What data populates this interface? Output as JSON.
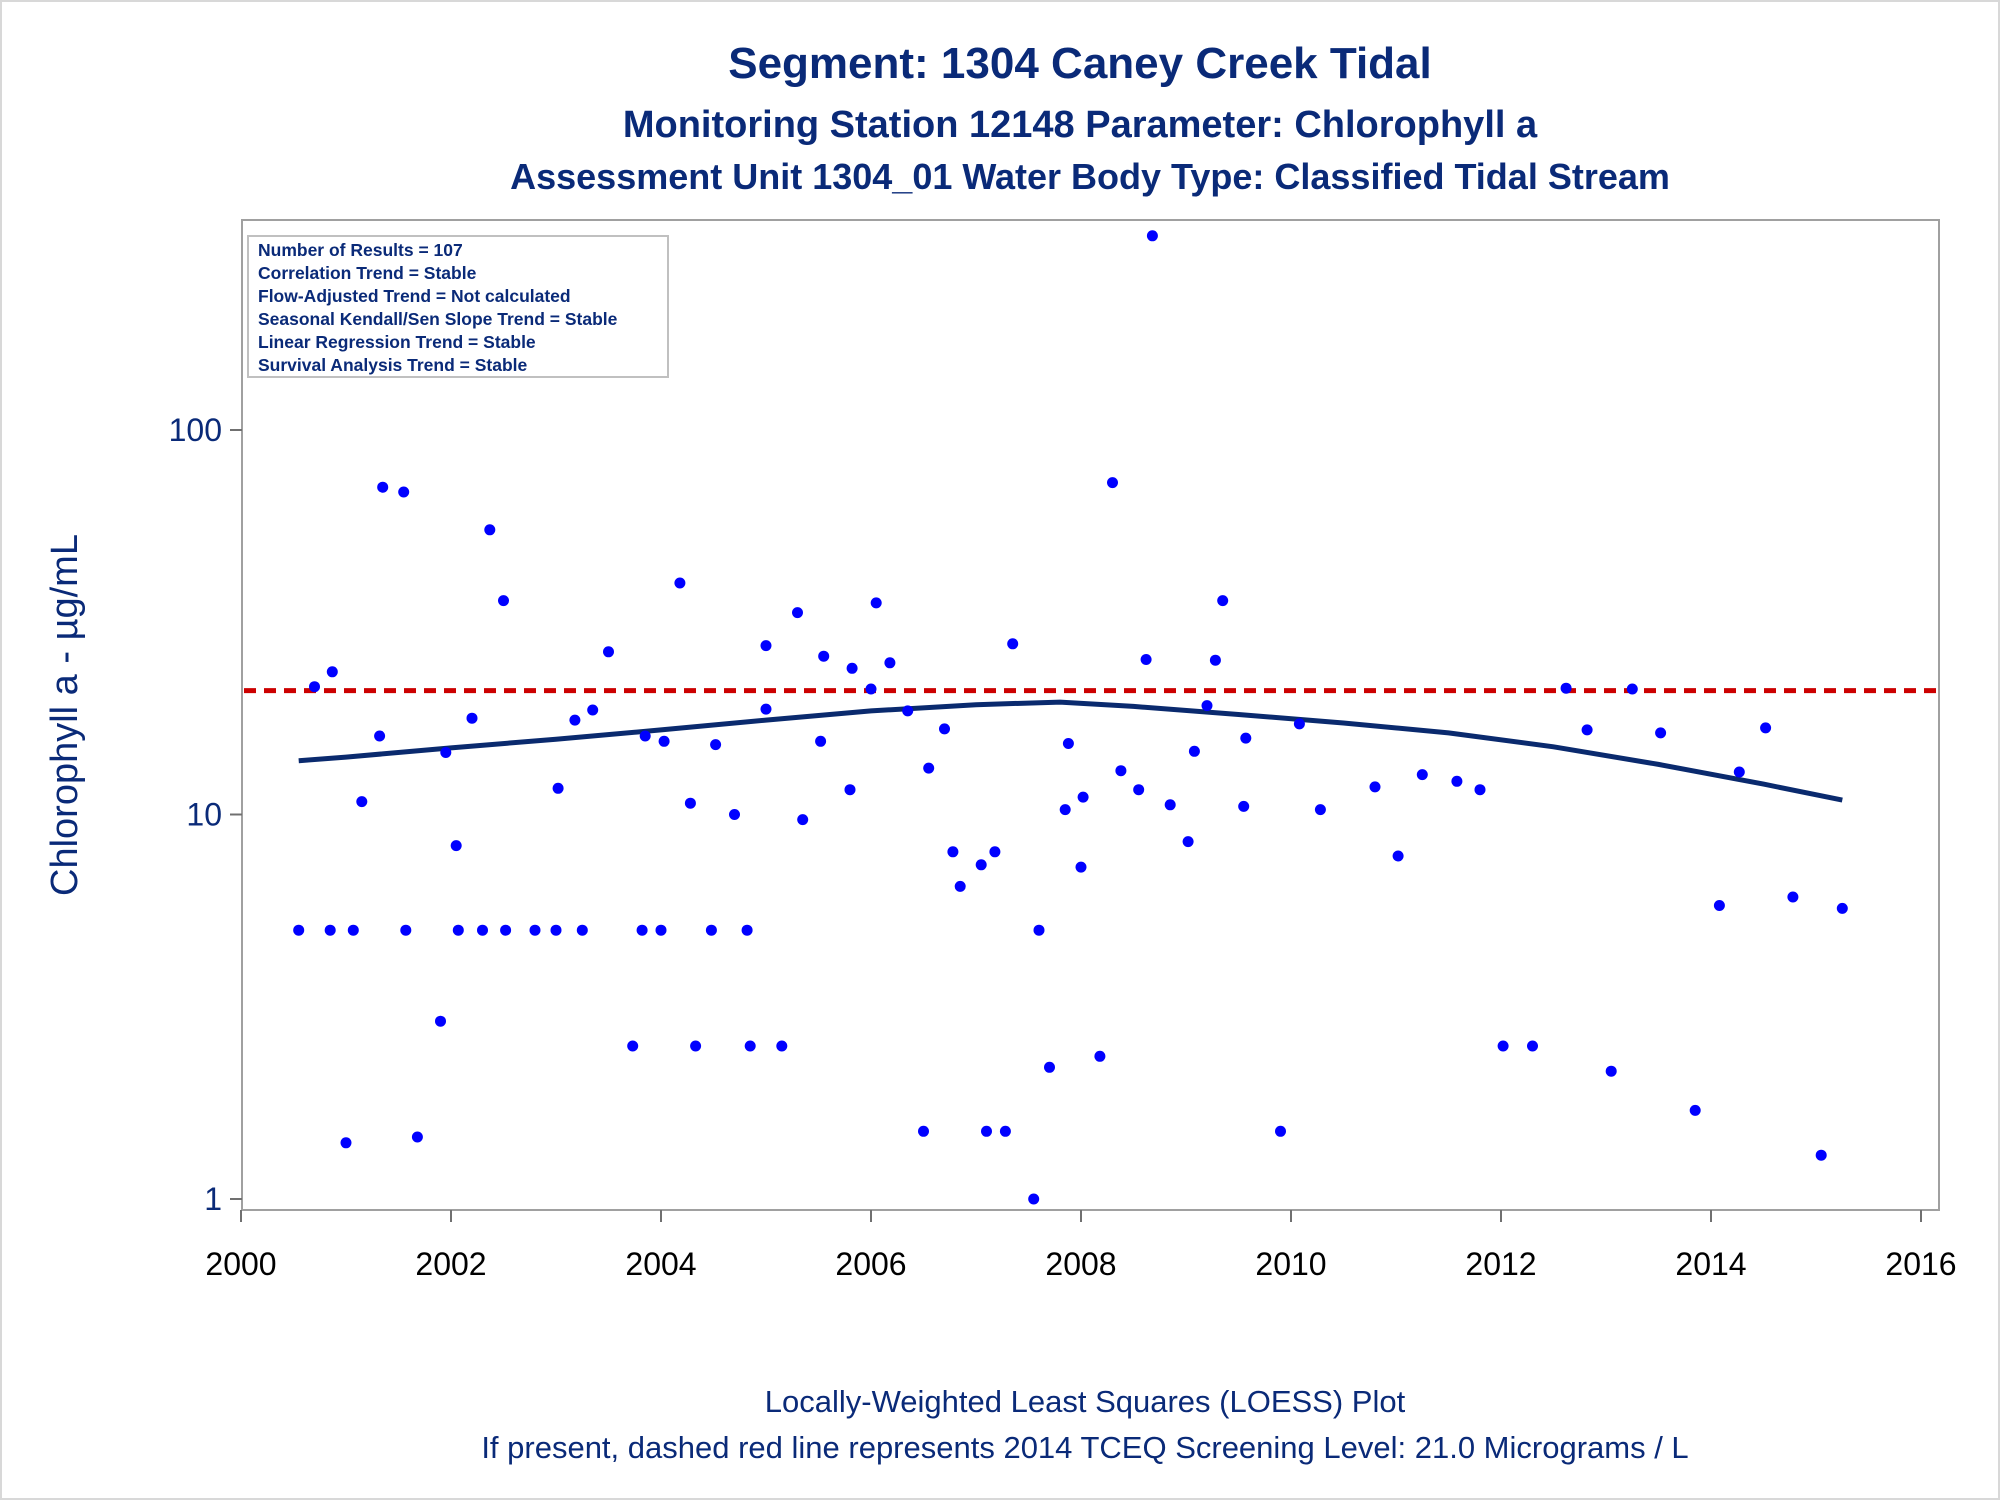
{
  "chart_data": {
    "type": "scatter",
    "title": "Segment: 1304  Caney Creek Tidal",
    "subtitle": "Monitoring Station 12148 Parameter: Chlorophyll a",
    "subtitle2": "Assessment Unit 1304_01   Water Body Type: Classified Tidal Stream",
    "ylabel": "Chlorophyll a -  µg/mL",
    "xlabel": "",
    "footnote1": "Locally-Weighted Least Squares (LOESS) Plot",
    "footnote2": "If present, dashed red line represents 2014 TCEQ Screening Level: 21.0 Micrograms / L",
    "y_scale": "log",
    "xlim": [
      2000,
      2016
    ],
    "x_ticks": [
      2000,
      2002,
      2004,
      2006,
      2008,
      2010,
      2012,
      2014,
      2016
    ],
    "y_ticks": [
      1,
      10,
      100
    ],
    "grid": false,
    "legend": "none",
    "stats": [
      "Number of Results = 107",
      "Correlation Trend = Stable",
      "Flow-Adjusted Trend = Not calculated",
      "Seasonal Kendall/Sen Slope Trend = Stable",
      "Linear Regression Trend = Stable",
      "Survival Analysis Trend = Stable"
    ],
    "screening_level": 21.0,
    "colors": {
      "points": "#0000ff",
      "loess": "#0a2a6e",
      "screening": "#cc0000",
      "text": "#0a2a78"
    },
    "points": [
      {
        "x": 2000.55,
        "y": 5.0
      },
      {
        "x": 2000.7,
        "y": 21.5
      },
      {
        "x": 2000.85,
        "y": 5.0
      },
      {
        "x": 2000.87,
        "y": 23.5
      },
      {
        "x": 2001.0,
        "y": 1.4
      },
      {
        "x": 2001.07,
        "y": 5.0
      },
      {
        "x": 2001.15,
        "y": 10.8
      },
      {
        "x": 2001.32,
        "y": 16.0
      },
      {
        "x": 2001.35,
        "y": 71.0
      },
      {
        "x": 2001.55,
        "y": 69.0
      },
      {
        "x": 2001.57,
        "y": 5.0
      },
      {
        "x": 2001.68,
        "y": 1.45
      },
      {
        "x": 2001.9,
        "y": 2.9
      },
      {
        "x": 2001.95,
        "y": 14.5
      },
      {
        "x": 2002.05,
        "y": 8.3
      },
      {
        "x": 2002.07,
        "y": 5.0
      },
      {
        "x": 2002.2,
        "y": 17.8
      },
      {
        "x": 2002.3,
        "y": 5.0
      },
      {
        "x": 2002.37,
        "y": 55.0
      },
      {
        "x": 2002.5,
        "y": 36.0
      },
      {
        "x": 2002.52,
        "y": 5.0
      },
      {
        "x": 2002.8,
        "y": 5.0
      },
      {
        "x": 2003.0,
        "y": 5.0
      },
      {
        "x": 2003.02,
        "y": 11.7
      },
      {
        "x": 2003.18,
        "y": 17.6
      },
      {
        "x": 2003.25,
        "y": 5.0
      },
      {
        "x": 2003.35,
        "y": 18.7
      },
      {
        "x": 2003.5,
        "y": 26.5
      },
      {
        "x": 2003.73,
        "y": 2.5
      },
      {
        "x": 2003.82,
        "y": 5.0
      },
      {
        "x": 2003.85,
        "y": 16.0
      },
      {
        "x": 2004.0,
        "y": 5.0
      },
      {
        "x": 2004.03,
        "y": 15.5
      },
      {
        "x": 2004.18,
        "y": 40.0
      },
      {
        "x": 2004.28,
        "y": 10.7
      },
      {
        "x": 2004.33,
        "y": 2.5
      },
      {
        "x": 2004.48,
        "y": 5.0
      },
      {
        "x": 2004.52,
        "y": 15.2
      },
      {
        "x": 2004.7,
        "y": 10.0
      },
      {
        "x": 2004.82,
        "y": 5.0
      },
      {
        "x": 2004.85,
        "y": 2.5
      },
      {
        "x": 2005.0,
        "y": 27.5
      },
      {
        "x": 2005.0,
        "y": 18.8
      },
      {
        "x": 2005.15,
        "y": 2.5
      },
      {
        "x": 2005.3,
        "y": 33.5
      },
      {
        "x": 2005.35,
        "y": 9.7
      },
      {
        "x": 2005.52,
        "y": 15.5
      },
      {
        "x": 2005.55,
        "y": 25.8
      },
      {
        "x": 2005.8,
        "y": 11.6
      },
      {
        "x": 2005.82,
        "y": 24.0
      },
      {
        "x": 2006.0,
        "y": 21.2
      },
      {
        "x": 2006.05,
        "y": 35.5
      },
      {
        "x": 2006.18,
        "y": 24.8
      },
      {
        "x": 2006.35,
        "y": 18.6
      },
      {
        "x": 2006.5,
        "y": 1.5
      },
      {
        "x": 2006.55,
        "y": 13.2
      },
      {
        "x": 2006.7,
        "y": 16.7
      },
      {
        "x": 2006.78,
        "y": 8.0
      },
      {
        "x": 2006.85,
        "y": 6.5
      },
      {
        "x": 2007.05,
        "y": 7.4
      },
      {
        "x": 2007.1,
        "y": 1.5
      },
      {
        "x": 2007.18,
        "y": 8.0
      },
      {
        "x": 2007.28,
        "y": 1.5
      },
      {
        "x": 2007.35,
        "y": 27.8
      },
      {
        "x": 2007.55,
        "y": 1.0
      },
      {
        "x": 2007.6,
        "y": 5.0
      },
      {
        "x": 2007.7,
        "y": 2.2
      },
      {
        "x": 2007.85,
        "y": 10.3
      },
      {
        "x": 2007.88,
        "y": 15.3
      },
      {
        "x": 2008.0,
        "y": 7.3
      },
      {
        "x": 2008.02,
        "y": 11.1
      },
      {
        "x": 2008.18,
        "y": 2.35
      },
      {
        "x": 2008.3,
        "y": 73.0
      },
      {
        "x": 2008.38,
        "y": 13.0
      },
      {
        "x": 2008.55,
        "y": 11.6
      },
      {
        "x": 2008.62,
        "y": 25.3
      },
      {
        "x": 2008.68,
        "y": 320.0
      },
      {
        "x": 2008.85,
        "y": 10.6
      },
      {
        "x": 2009.02,
        "y": 8.5
      },
      {
        "x": 2009.08,
        "y": 14.6
      },
      {
        "x": 2009.2,
        "y": 19.2
      },
      {
        "x": 2009.28,
        "y": 25.2
      },
      {
        "x": 2009.35,
        "y": 36.0
      },
      {
        "x": 2009.55,
        "y": 10.5
      },
      {
        "x": 2009.57,
        "y": 15.8
      },
      {
        "x": 2009.9,
        "y": 1.5
      },
      {
        "x": 2010.08,
        "y": 17.2
      },
      {
        "x": 2010.28,
        "y": 10.3
      },
      {
        "x": 2010.8,
        "y": 11.8
      },
      {
        "x": 2011.02,
        "y": 7.8
      },
      {
        "x": 2011.25,
        "y": 12.7
      },
      {
        "x": 2011.58,
        "y": 12.2
      },
      {
        "x": 2011.8,
        "y": 11.6
      },
      {
        "x": 2012.02,
        "y": 2.5
      },
      {
        "x": 2012.3,
        "y": 2.5
      },
      {
        "x": 2012.62,
        "y": 21.3
      },
      {
        "x": 2012.82,
        "y": 16.6
      },
      {
        "x": 2013.05,
        "y": 2.15
      },
      {
        "x": 2013.25,
        "y": 21.2
      },
      {
        "x": 2013.52,
        "y": 16.3
      },
      {
        "x": 2013.85,
        "y": 1.7
      },
      {
        "x": 2014.08,
        "y": 5.8
      },
      {
        "x": 2014.27,
        "y": 12.9
      },
      {
        "x": 2014.52,
        "y": 16.8
      },
      {
        "x": 2014.78,
        "y": 6.1
      },
      {
        "x": 2015.05,
        "y": 1.3
      },
      {
        "x": 2015.25,
        "y": 5.7
      }
    ],
    "loess": [
      {
        "x": 2000.55,
        "y": 13.8
      },
      {
        "x": 2001.0,
        "y": 14.1
      },
      {
        "x": 2002.0,
        "y": 14.9
      },
      {
        "x": 2003.0,
        "y": 15.7
      },
      {
        "x": 2004.0,
        "y": 16.6
      },
      {
        "x": 2005.0,
        "y": 17.6
      },
      {
        "x": 2006.0,
        "y": 18.6
      },
      {
        "x": 2007.0,
        "y": 19.3
      },
      {
        "x": 2007.8,
        "y": 19.6
      },
      {
        "x": 2008.5,
        "y": 19.1
      },
      {
        "x": 2009.5,
        "y": 18.2
      },
      {
        "x": 2010.5,
        "y": 17.3
      },
      {
        "x": 2011.5,
        "y": 16.3
      },
      {
        "x": 2012.5,
        "y": 15.0
      },
      {
        "x": 2013.5,
        "y": 13.5
      },
      {
        "x": 2014.5,
        "y": 12.0
      },
      {
        "x": 2015.25,
        "y": 10.9
      }
    ]
  }
}
